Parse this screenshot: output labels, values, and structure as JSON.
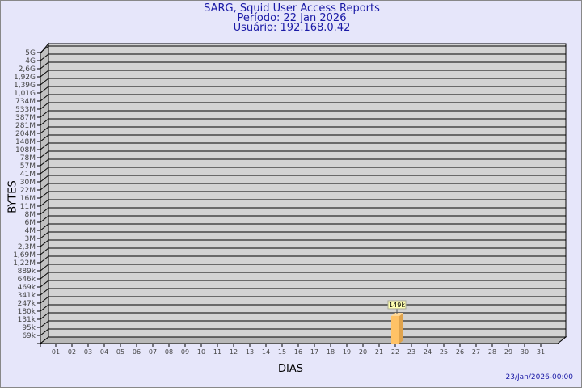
{
  "chart_data": {
    "type": "bar",
    "title": "SARG, Squid User Access Reports",
    "subtitle1": "Período: 22 Jan 2026",
    "subtitle2": "Usuário: 192.168.0.42",
    "xlabel": "DIAS",
    "ylabel": "BYTES",
    "y_scale": "log",
    "y_tick_labels": [
      "5G",
      "4G",
      "2,6G",
      "1,92G",
      "1,39G",
      "1,01G",
      "734M",
      "533M",
      "387M",
      "281M",
      "204M",
      "148M",
      "108M",
      "78M",
      "57M",
      "41M",
      "30M",
      "22M",
      "16M",
      "11M",
      "8M",
      "6M",
      "4M",
      "3M",
      "2,3M",
      "1,69M",
      "1,22M",
      "889k",
      "646k",
      "469k",
      "341k",
      "247k",
      "180k",
      "131k",
      "95k",
      "69k"
    ],
    "categories": [
      "01",
      "02",
      "03",
      "04",
      "05",
      "06",
      "07",
      "08",
      "09",
      "10",
      "11",
      "12",
      "13",
      "14",
      "15",
      "16",
      "17",
      "18",
      "19",
      "20",
      "21",
      "22",
      "23",
      "24",
      "25",
      "26",
      "27",
      "28",
      "29",
      "30",
      "31"
    ],
    "bars": [
      {
        "day": "22",
        "value": 149000,
        "label": "149k"
      }
    ],
    "grid": true,
    "bar_color": "#ffc266",
    "footer": "23/Jan/2026-00:00"
  }
}
